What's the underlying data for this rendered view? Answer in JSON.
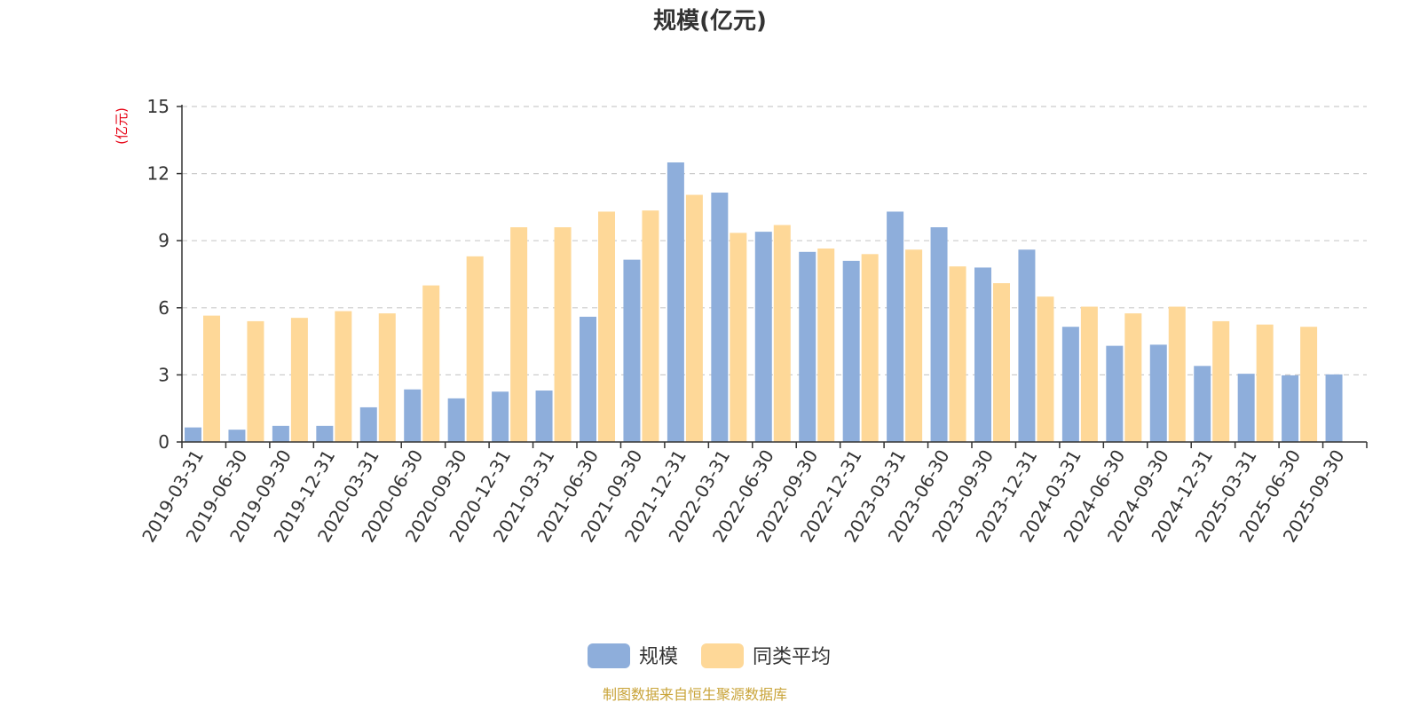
{
  "chart_data": {
    "type": "bar",
    "title": "规模(亿元)",
    "ylabel": "(亿元)",
    "ylim": [
      0,
      15
    ],
    "yticks": [
      0,
      3,
      6,
      9,
      12,
      15
    ],
    "categories": [
      "2019-03-31",
      "2019-06-30",
      "2019-09-30",
      "2019-12-31",
      "2020-03-31",
      "2020-06-30",
      "2020-09-30",
      "2020-12-31",
      "2021-03-31",
      "2021-06-30",
      "2021-09-30",
      "2021-12-31",
      "2022-03-31",
      "2022-06-30",
      "2022-09-30",
      "2022-12-31",
      "2023-03-31",
      "2023-06-30",
      "2023-09-30",
      "2023-12-31",
      "2024-03-31",
      "2024-06-30",
      "2024-09-30",
      "2024-12-31",
      "2025-03-31",
      "2025-06-30",
      "2025-09-30"
    ],
    "series": [
      {
        "name": "规模",
        "color": "#8eaedb",
        "values": [
          0.65,
          0.55,
          0.72,
          0.72,
          1.55,
          2.35,
          1.95,
          2.25,
          2.3,
          5.6,
          8.15,
          12.5,
          11.15,
          9.4,
          8.5,
          8.1,
          10.3,
          9.6,
          7.8,
          8.6,
          5.15,
          4.3,
          4.35,
          3.4,
          3.05,
          2.98,
          3.02
        ]
      },
      {
        "name": "同类平均",
        "color": "#fed898",
        "values": [
          5.65,
          5.4,
          5.55,
          5.85,
          5.75,
          7.0,
          8.3,
          9.6,
          9.6,
          10.3,
          10.35,
          11.05,
          9.35,
          9.7,
          8.65,
          8.4,
          8.6,
          7.85,
          7.1,
          6.5,
          6.05,
          5.75,
          6.05,
          5.4,
          5.25,
          5.15,
          null
        ]
      }
    ],
    "grid": true,
    "legend_position": "bottom-center"
  },
  "source_note": "制图数据来自恒生聚源数据库"
}
